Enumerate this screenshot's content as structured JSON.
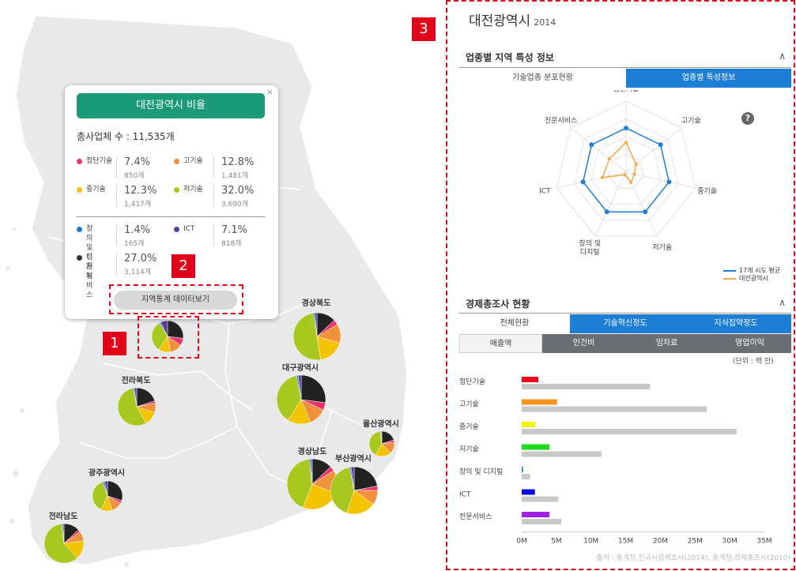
{
  "colors": {
    "advanced": "#e8336d",
    "high": "#f0913c",
    "mid": "#f5c400",
    "low": "#a8c81f",
    "creative": "#1f77c8",
    "ict": "#5b3aa0",
    "service": "#222222",
    "accent_green": "#1a9a76",
    "tab_blue": "#1d7ed6",
    "avg_line": "#1d7ed6",
    "city_line": "#f0a84a"
  },
  "map": {
    "regions": [
      {
        "name": "경상북도",
        "pie": [
          3.5,
          13,
          18,
          50,
          1,
          1.5,
          13
        ]
      },
      {
        "name": "대구광역시",
        "pie": [
          5,
          12,
          15,
          38,
          1,
          2,
          27
        ]
      },
      {
        "name": "전라북도",
        "pie": [
          2,
          8,
          12,
          55,
          1,
          2,
          20
        ]
      },
      {
        "name": "울산광역시",
        "pie": [
          3,
          15,
          20,
          40,
          1,
          1,
          20
        ]
      },
      {
        "name": "경상남도",
        "pie": [
          3,
          15,
          25,
          42,
          1,
          1,
          13
        ]
      },
      {
        "name": "부산광역시",
        "pie": [
          3,
          10,
          20,
          42,
          1,
          2,
          22
        ]
      },
      {
        "name": "광주광역시",
        "pie": [
          3,
          12,
          12,
          38,
          2,
          3,
          30
        ]
      },
      {
        "name": "전라남도",
        "pie": [
          2,
          8,
          15,
          60,
          1,
          1,
          13
        ]
      },
      {
        "name": "",
        "pie": [
          7.4,
          12.8,
          12.3,
          32.0,
          1.4,
          7.1,
          27.0
        ]
      }
    ]
  },
  "popup": {
    "title": "대전광역시 비율",
    "close": "×",
    "total": "총사업체 수 : 11,535개",
    "stats": [
      {
        "label": "첨단기술",
        "pct": "7.4%",
        "count": "850개"
      },
      {
        "label": "고기술",
        "pct": "12.8%",
        "count": "1,481개"
      },
      {
        "label": "중기술",
        "pct": "12.3%",
        "count": "1,417개"
      },
      {
        "label": "저기술",
        "pct": "32.0%",
        "count": "3,690개"
      },
      {
        "label": "창의 및\n디지털",
        "pct": "1.4%",
        "count": "165개"
      },
      {
        "label": "ICT",
        "pct": "7.1%",
        "count": "818개"
      },
      {
        "label": "전문\n서비스",
        "pct": "27.0%",
        "count": "3,114개"
      }
    ],
    "data_button": "지역통계 데이터보기"
  },
  "badges": {
    "one": "1",
    "two": "2",
    "three": "3"
  },
  "panel": {
    "title": "대전광역시",
    "year": "2014",
    "section1": {
      "title": "업종별 지역 특성 정보",
      "chevron": "∧",
      "tabs": [
        {
          "label": "기술업종 분포현황",
          "active": false
        },
        {
          "label": "업종별 특성정보",
          "active": true
        }
      ],
      "help": "?",
      "legend": [
        {
          "label": "17개 시도 평균",
          "color": "#1d7ed6"
        },
        {
          "label": "대전광역시",
          "color": "#f0a84a"
        }
      ]
    },
    "section2": {
      "title": "경제총조사 현황",
      "chevron": "∧",
      "tabs": [
        {
          "label": "전체현황",
          "active": false
        },
        {
          "label": "기술혁신정도",
          "active": true
        },
        {
          "label": "지식집약정도",
          "active": true
        }
      ],
      "subtabs": [
        {
          "label": "매출액",
          "active": true
        },
        {
          "label": "인건비",
          "active": false
        },
        {
          "label": "임차료",
          "active": false
        },
        {
          "label": "영업이익",
          "active": false
        }
      ],
      "unit": "(단위 : 백 만)",
      "source": "출처 : 통계청,전국사업체조사(2014), 통계청,경제총조사(2010)"
    }
  },
  "chart_data": [
    {
      "type": "radar",
      "axes": [
        "첨단기술",
        "고기술",
        "중기술",
        "저기술",
        "창의 및\n디지털",
        "ICT",
        "전문서비스"
      ],
      "series": [
        {
          "name": "17개 시도 평균",
          "values": [
            0.62,
            0.62,
            0.62,
            0.62,
            0.62,
            0.62,
            0.62
          ]
        },
        {
          "name": "대전광역시",
          "values": [
            0.42,
            0.18,
            0.12,
            0.16,
            0.04,
            0.34,
            0.3
          ]
        }
      ]
    },
    {
      "type": "bar",
      "orientation": "horizontal",
      "categories": [
        "첨단기술",
        "고기술",
        "중기술",
        "저기술",
        "창의 및 디지털",
        "ICT",
        "전문서비스"
      ],
      "category_colors": [
        "#e8001c",
        "#f7941d",
        "#f2f20a",
        "#1ddb1d",
        "#1a84d8",
        "#0a0ad8",
        "#a020e8"
      ],
      "series": [
        {
          "values": [
            2.4,
            5.1,
            2.0,
            4.0,
            0.2,
            1.9,
            4.0
          ]
        },
        {
          "values": [
            18.5,
            26.7,
            31.0,
            11.5,
            1.2,
            5.3,
            5.7
          ]
        }
      ],
      "xticks": [
        "0M",
        "5M",
        "10M",
        "15M",
        "20M",
        "25M",
        "30M",
        "35M"
      ],
      "xlim": [
        0,
        35
      ]
    }
  ]
}
